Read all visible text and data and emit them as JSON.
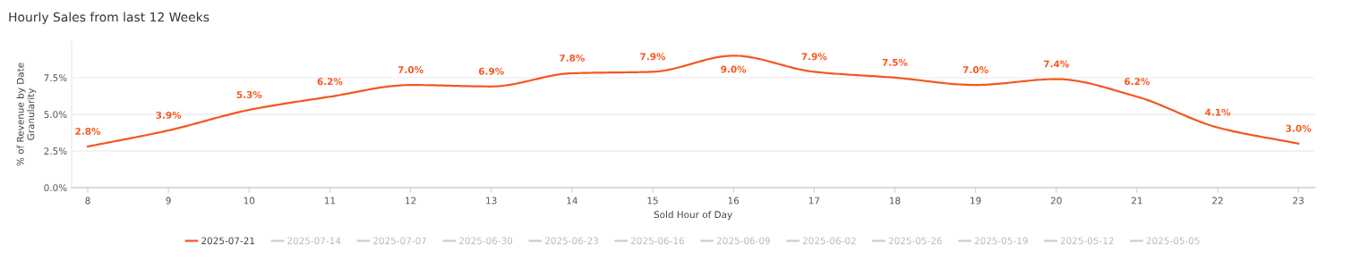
{
  "chart_data": {
    "type": "line",
    "title": "Hourly Sales from last 12 Weeks",
    "xlabel": "Sold Hour of Day",
    "ylabel": "% of Revenue by Date\nGranularity",
    "x": [
      8,
      9,
      10,
      11,
      12,
      13,
      14,
      15,
      16,
      17,
      18,
      19,
      20,
      21,
      22,
      23
    ],
    "xlim": [
      7.8,
      23.2
    ],
    "xticks": [
      8,
      9,
      10,
      11,
      12,
      13,
      14,
      15,
      16,
      17,
      18,
      19,
      20,
      21,
      22,
      23
    ],
    "ylim": [
      0,
      10
    ],
    "yticks": [
      {
        "value": 0,
        "label": "0.0%"
      },
      {
        "value": 2.5,
        "label": "2.5%"
      },
      {
        "value": 5,
        "label": "5.0%"
      },
      {
        "value": 7.5,
        "label": "7.5%"
      }
    ],
    "grid": "y",
    "legend": "bottom",
    "marker": "none",
    "line_style": "solid",
    "series": [
      {
        "name": "2025-07-21",
        "color": "#f4581f",
        "values": [
          2.8,
          3.9,
          5.3,
          6.2,
          7.0,
          6.9,
          7.8,
          7.9,
          9.0,
          7.9,
          7.5,
          7.0,
          7.4,
          6.2,
          4.1,
          3.0
        ],
        "value_labels": [
          "2.8%",
          "3.9%",
          "5.3%",
          "6.2%",
          "7.0%",
          "6.9%",
          "7.8%",
          "7.9%",
          "9.0%",
          "7.9%",
          "7.5%",
          "7.0%",
          "7.4%",
          "6.2%",
          "4.1%",
          "3.0%"
        ]
      },
      {
        "name": "2025-07-14",
        "color": "#cccccc",
        "values": [
          null,
          null,
          null,
          null,
          null,
          null,
          null,
          null,
          null,
          null,
          null,
          null,
          null,
          null,
          null,
          null
        ]
      },
      {
        "name": "2025-07-07",
        "color": "#cccccc",
        "values": [
          null,
          null,
          null,
          null,
          null,
          null,
          null,
          null,
          null,
          null,
          null,
          null,
          null,
          null,
          null,
          null
        ]
      },
      {
        "name": "2025-06-30",
        "color": "#cccccc",
        "values": [
          null,
          null,
          null,
          null,
          null,
          null,
          null,
          null,
          null,
          null,
          null,
          null,
          null,
          null,
          null,
          null
        ]
      },
      {
        "name": "2025-06-23",
        "color": "#cccccc",
        "values": [
          null,
          null,
          null,
          null,
          null,
          null,
          null,
          null,
          null,
          null,
          null,
          null,
          null,
          null,
          null,
          null
        ]
      },
      {
        "name": "2025-06-16",
        "color": "#cccccc",
        "values": [
          null,
          null,
          null,
          null,
          null,
          null,
          null,
          null,
          null,
          null,
          null,
          null,
          null,
          null,
          null,
          null
        ]
      },
      {
        "name": "2025-06-09",
        "color": "#cccccc",
        "values": [
          null,
          null,
          null,
          null,
          null,
          null,
          null,
          null,
          null,
          null,
          null,
          null,
          null,
          null,
          null,
          null
        ]
      },
      {
        "name": "2025-06-02",
        "color": "#cccccc",
        "values": [
          null,
          null,
          null,
          null,
          null,
          null,
          null,
          null,
          null,
          null,
          null,
          null,
          null,
          null,
          null,
          null
        ]
      },
      {
        "name": "2025-05-26",
        "color": "#cccccc",
        "values": [
          null,
          null,
          null,
          null,
          null,
          null,
          null,
          null,
          null,
          null,
          null,
          null,
          null,
          null,
          null,
          null
        ]
      },
      {
        "name": "2025-05-19",
        "color": "#cccccc",
        "values": [
          null,
          null,
          null,
          null,
          null,
          null,
          null,
          null,
          null,
          null,
          null,
          null,
          null,
          null,
          null,
          null
        ]
      },
      {
        "name": "2025-05-12",
        "color": "#cccccc",
        "values": [
          null,
          null,
          null,
          null,
          null,
          null,
          null,
          null,
          null,
          null,
          null,
          null,
          null,
          null,
          null,
          null
        ]
      },
      {
        "name": "2025-05-05",
        "color": "#cccccc",
        "values": [
          null,
          null,
          null,
          null,
          null,
          null,
          null,
          null,
          null,
          null,
          null,
          null,
          null,
          null,
          null,
          null
        ]
      }
    ]
  }
}
